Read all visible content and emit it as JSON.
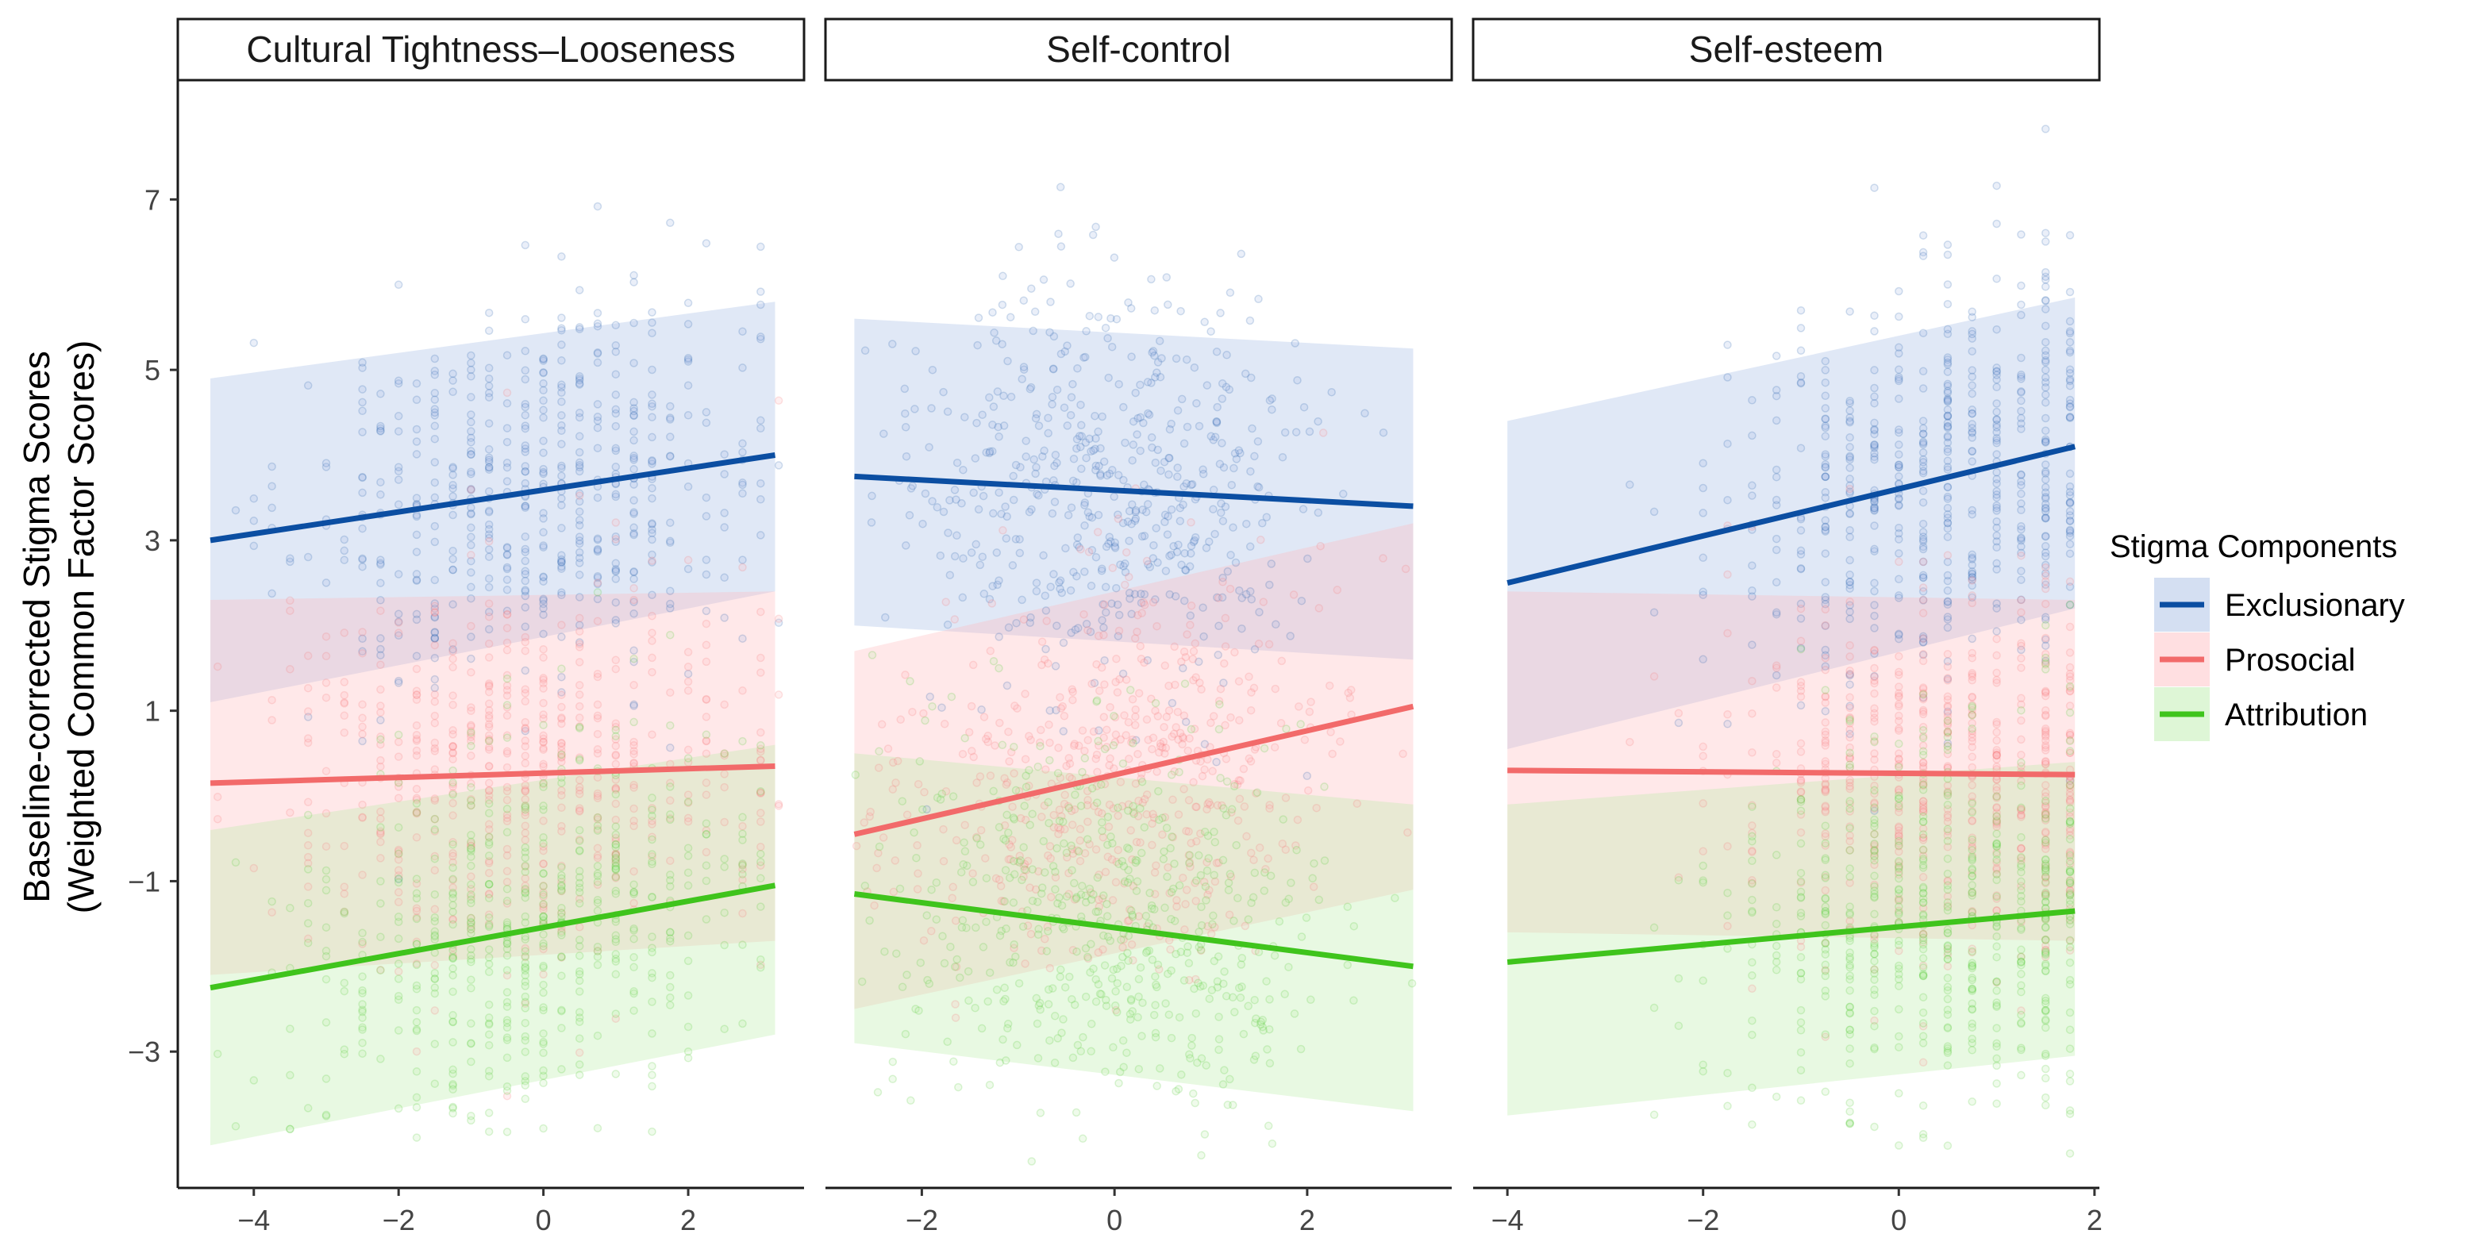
{
  "chart_data": {
    "type": "scatter",
    "ylabel_line1": "Baseline-corrected Stigma Scores",
    "ylabel_line2": "(Weighted Common Factor Scores)",
    "ylim": [
      -4.6,
      8.4
    ],
    "y_ticks": [
      -3,
      -1,
      1,
      3,
      5,
      7
    ],
    "legend": {
      "title": "Stigma Components",
      "position": "right",
      "entries": [
        {
          "name": "Exclusionary",
          "color": "#0b4ea2",
          "fill": "#9fb8e2"
        },
        {
          "name": "Prosocial",
          "color": "#f26a6a",
          "fill": "#ffb8bc"
        },
        {
          "name": "Attribution",
          "color": "#3fc41c",
          "fill": "#b6eca4"
        }
      ]
    },
    "panels": [
      {
        "title": "Cultural Tightness–Looseness",
        "xlim": [
          -5.05,
          3.6
        ],
        "x_ticks": [
          -4,
          -2,
          0,
          2
        ],
        "x_range": [
          -4.6,
          3.2
        ],
        "point_range": [
          -4.6,
          3.2
        ],
        "point_center": -0.2,
        "point_spread": 1.6,
        "lines": [
          {
            "series": "Exclusionary",
            "y_start": 3.0,
            "y_end": 4.0,
            "ci_lower": [
              1.1,
              2.4
            ],
            "ci_upper": [
              4.9,
              5.8
            ]
          },
          {
            "series": "Prosocial",
            "y_start": 0.15,
            "y_end": 0.35,
            "ci_lower": [
              -2.1,
              -1.7
            ],
            "ci_upper": [
              2.3,
              2.4
            ]
          },
          {
            "series": "Attribution",
            "y_start": -2.25,
            "y_end": -1.05,
            "ci_lower": [
              -4.1,
              -2.8
            ],
            "ci_upper": [
              -0.4,
              0.6
            ]
          }
        ]
      },
      {
        "title": "Self-control",
        "xlim": [
          -3.0,
          3.5
        ],
        "x_ticks": [
          -2,
          0,
          2
        ],
        "x_range": [
          -2.7,
          3.1
        ],
        "point_range": [
          -2.7,
          3.1
        ],
        "point_center": 0.0,
        "point_spread": 1.1,
        "lines": [
          {
            "series": "Exclusionary",
            "y_start": 3.75,
            "y_end": 3.4,
            "ci_lower": [
              2.0,
              1.6
            ],
            "ci_upper": [
              5.6,
              5.25
            ]
          },
          {
            "series": "Prosocial",
            "y_start": -0.45,
            "y_end": 1.05,
            "ci_lower": [
              -2.5,
              -1.1
            ],
            "ci_upper": [
              1.7,
              3.2
            ]
          },
          {
            "series": "Attribution",
            "y_start": -1.15,
            "y_end": -2.0,
            "ci_lower": [
              -2.9,
              -3.7
            ],
            "ci_upper": [
              0.5,
              -0.1
            ]
          }
        ]
      },
      {
        "title": "Self-esteem",
        "xlim": [
          -4.35,
          2.05
        ],
        "x_ticks": [
          -4,
          -2,
          0,
          2
        ],
        "x_range": [
          -4.0,
          1.8
        ],
        "point_range": [
          -4.0,
          1.8
        ],
        "point_center": 0.4,
        "point_spread": 1.1,
        "lines": [
          {
            "series": "Exclusionary",
            "y_start": 2.5,
            "y_end": 4.1,
            "ci_lower": [
              0.55,
              2.2
            ],
            "ci_upper": [
              4.4,
              5.85
            ]
          },
          {
            "series": "Prosocial",
            "y_start": 0.3,
            "y_end": 0.25,
            "ci_lower": [
              -1.6,
              -1.7
            ],
            "ci_upper": [
              2.4,
              2.3
            ]
          },
          {
            "series": "Attribution",
            "y_start": -1.95,
            "y_end": -1.35,
            "ci_lower": [
              -3.75,
              -3.05
            ],
            "ci_upper": [
              -0.1,
              0.4
            ]
          }
        ]
      }
    ]
  }
}
